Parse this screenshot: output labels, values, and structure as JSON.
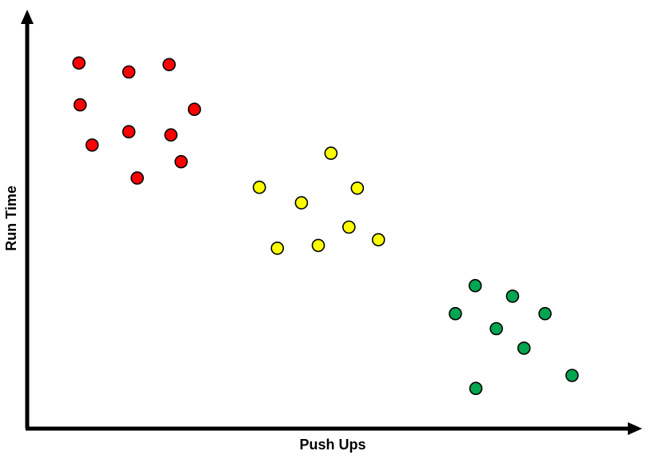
{
  "chart_data": {
    "type": "scatter",
    "title": "",
    "xlabel": "Push Ups",
    "ylabel": "Run Time",
    "xlim": [
      0,
      100
    ],
    "ylim": [
      0,
      100
    ],
    "grid": false,
    "legend": "none",
    "axis_color": "#000000",
    "marker_stroke": "#000000",
    "series": [
      {
        "color": "#ff0000",
        "points": [
          {
            "x": 8.6,
            "y": 90.0
          },
          {
            "x": 16.9,
            "y": 87.8
          },
          {
            "x": 23.6,
            "y": 89.6
          },
          {
            "x": 8.8,
            "y": 79.7
          },
          {
            "x": 27.8,
            "y": 78.6
          },
          {
            "x": 16.9,
            "y": 73.1
          },
          {
            "x": 23.9,
            "y": 72.3
          },
          {
            "x": 10.8,
            "y": 69.8
          },
          {
            "x": 25.6,
            "y": 65.7
          },
          {
            "x": 18.3,
            "y": 61.7
          }
        ]
      },
      {
        "color": "#ffff00",
        "points": [
          {
            "x": 50.5,
            "y": 67.8
          },
          {
            "x": 38.6,
            "y": 59.4
          },
          {
            "x": 54.9,
            "y": 59.2
          },
          {
            "x": 45.6,
            "y": 55.6
          },
          {
            "x": 53.5,
            "y": 49.6
          },
          {
            "x": 58.4,
            "y": 46.5
          },
          {
            "x": 41.6,
            "y": 44.4
          },
          {
            "x": 48.4,
            "y": 45.1
          }
        ]
      },
      {
        "color": "#00a550",
        "points": [
          {
            "x": 74.5,
            "y": 35.2
          },
          {
            "x": 80.7,
            "y": 32.6
          },
          {
            "x": 71.2,
            "y": 28.3
          },
          {
            "x": 86.1,
            "y": 28.3
          },
          {
            "x": 78.0,
            "y": 24.6
          },
          {
            "x": 82.6,
            "y": 19.8
          },
          {
            "x": 90.6,
            "y": 13.1
          },
          {
            "x": 74.6,
            "y": 9.9
          }
        ]
      }
    ]
  }
}
